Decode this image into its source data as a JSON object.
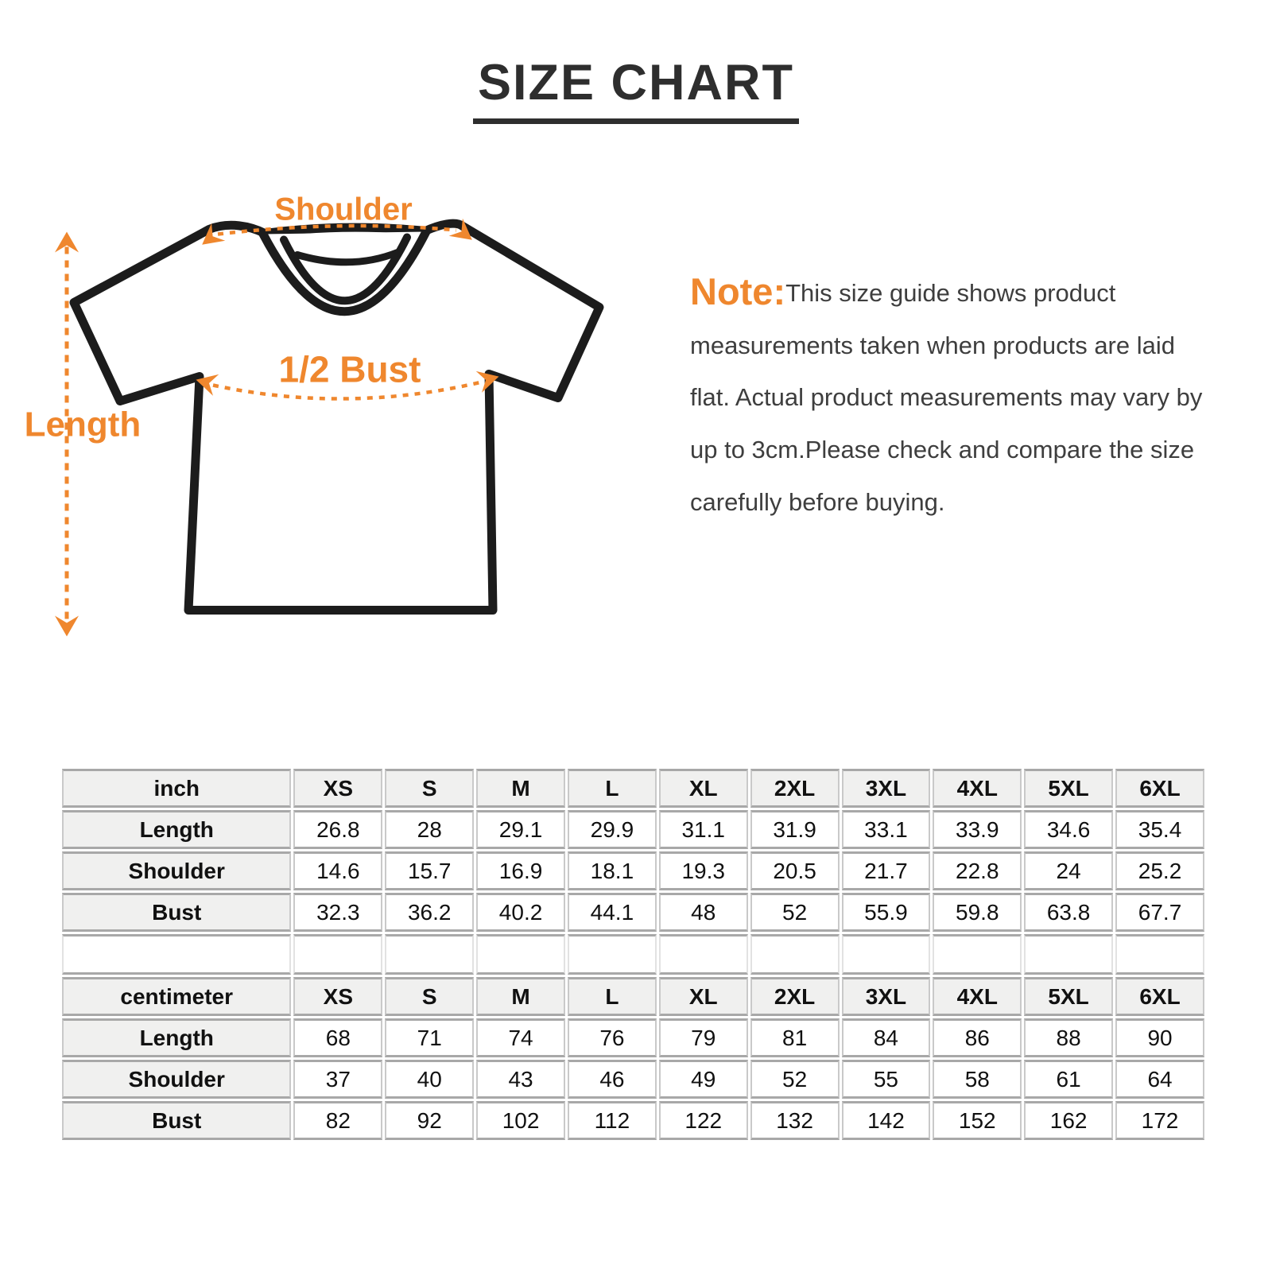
{
  "title": "SIZE CHART",
  "note": {
    "prefix": "Note:",
    "body": "This size guide shows product measurements taken when products are laid flat. Actual product measurements may vary by up to 3cm.Please check and compare the size carefully before buying."
  },
  "diagram": {
    "shoulder_label": "Shoulder",
    "bust_label": "1/2 Bust",
    "length_label": "Length"
  },
  "colors": {
    "accent_orange": "#ef872e",
    "shirt_outline": "#1c1c1c",
    "table_border": "#a8a8a8",
    "table_header_bg": "#f0f0ef"
  },
  "size_table": {
    "sections": [
      {
        "unit": "inch",
        "sizes": [
          "XS",
          "S",
          "M",
          "L",
          "XL",
          "2XL",
          "3XL",
          "4XL",
          "5XL",
          "6XL"
        ],
        "rows": [
          {
            "label": "Length",
            "values": [
              "26.8",
              "28",
              "29.1",
              "29.9",
              "31.1",
              "31.9",
              "33.1",
              "33.9",
              "34.6",
              "35.4"
            ]
          },
          {
            "label": "Shoulder",
            "values": [
              "14.6",
              "15.7",
              "16.9",
              "18.1",
              "19.3",
              "20.5",
              "21.7",
              "22.8",
              "24",
              "25.2"
            ]
          },
          {
            "label": "Bust",
            "values": [
              "32.3",
              "36.2",
              "40.2",
              "44.1",
              "48",
              "52",
              "55.9",
              "59.8",
              "63.8",
              "67.7"
            ]
          }
        ]
      },
      {
        "unit": "centimeter",
        "sizes": [
          "XS",
          "S",
          "M",
          "L",
          "XL",
          "2XL",
          "3XL",
          "4XL",
          "5XL",
          "6XL"
        ],
        "rows": [
          {
            "label": "Length",
            "values": [
              "68",
              "71",
              "74",
              "76",
              "79",
              "81",
              "84",
              "86",
              "88",
              "90"
            ]
          },
          {
            "label": "Shoulder",
            "values": [
              "37",
              "40",
              "43",
              "46",
              "49",
              "52",
              "55",
              "58",
              "61",
              "64"
            ]
          },
          {
            "label": "Bust",
            "values": [
              "82",
              "92",
              "102",
              "112",
              "122",
              "132",
              "142",
              "152",
              "162",
              "172"
            ]
          }
        ]
      }
    ]
  }
}
